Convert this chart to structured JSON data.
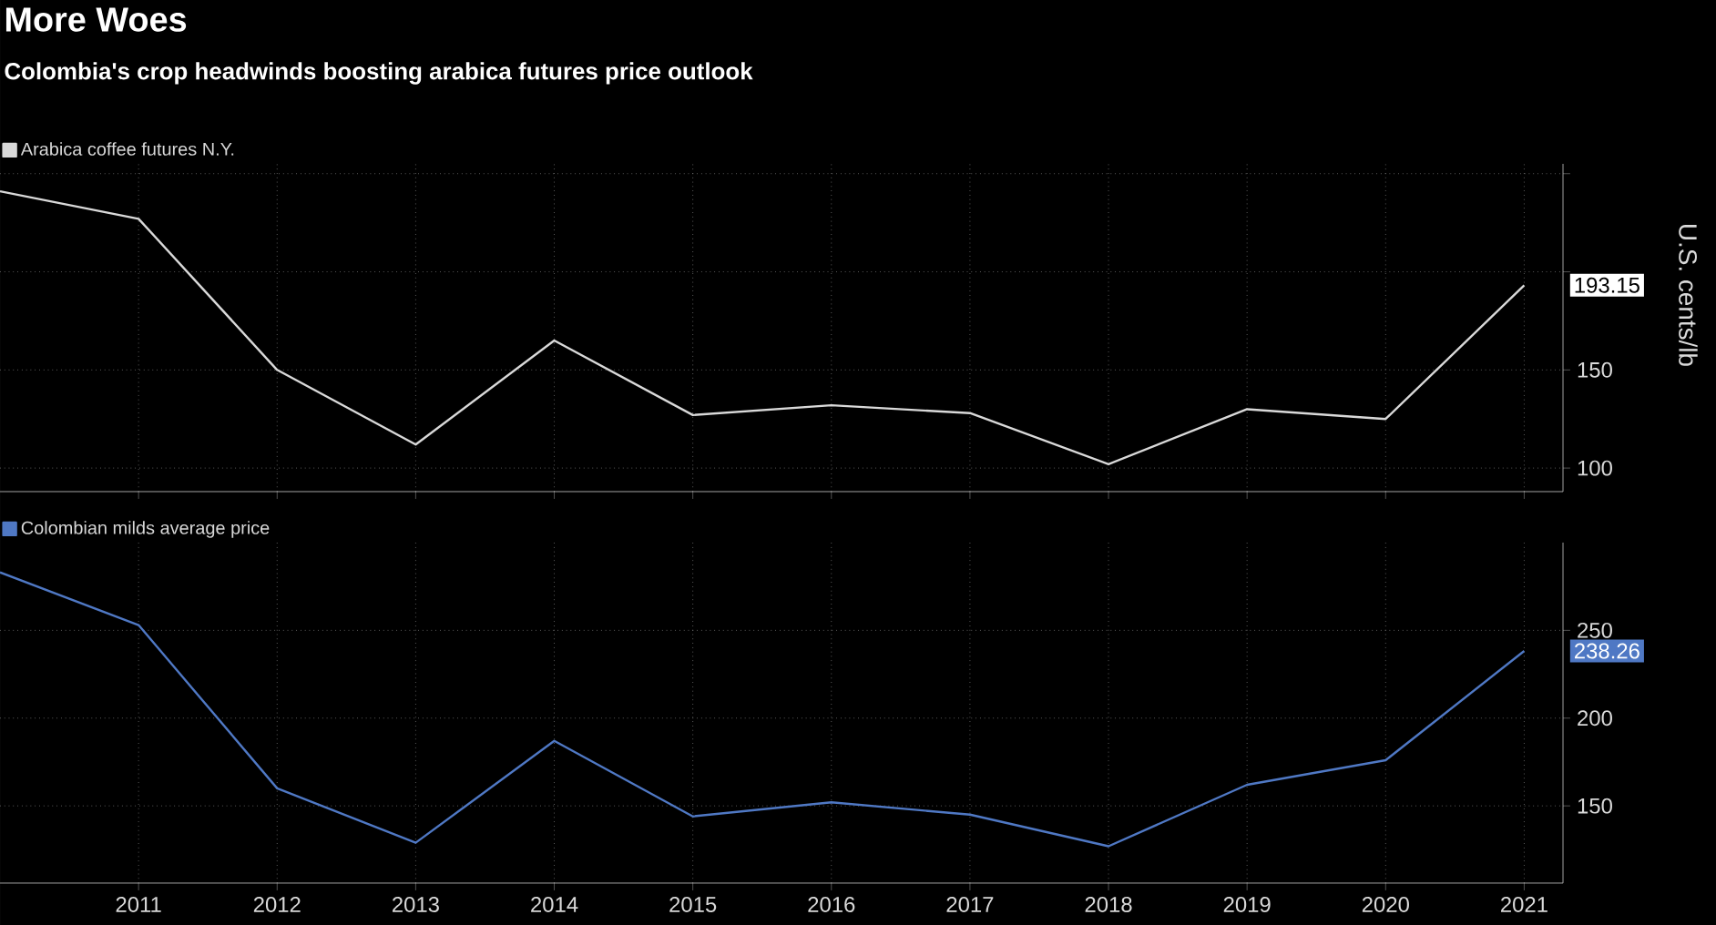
{
  "chart_data": [
    {
      "type": "line",
      "title": "More Woes",
      "subtitle": "Colombia's crop headwinds boosting arabica futures price outlook",
      "ylabel": "U.S. cents/lb",
      "x": [
        2010,
        2011,
        2012,
        2013,
        2014,
        2015,
        2016,
        2017,
        2018,
        2019,
        2020,
        2021
      ],
      "series": [
        {
          "name": "Arabica coffee futures N.Y.",
          "color": "#d9d9d9",
          "values": [
            241,
            227,
            150,
            112,
            165,
            127,
            132,
            128,
            102,
            130,
            125,
            193.15
          ]
        }
      ],
      "xlim": [
        2010,
        2021.28
      ],
      "xticks": [
        2011,
        2012,
        2013,
        2014,
        2015,
        2016,
        2017,
        2018,
        2019,
        2020,
        2021
      ],
      "ylim": [
        88,
        255
      ],
      "yticks": [
        100,
        150,
        {
          "value": 200,
          "label": null
        },
        {
          "value": 250,
          "label": null
        }
      ],
      "annotations": [
        {
          "text": "193.15",
          "x": 2021,
          "y": 193.15
        }
      ],
      "tick_labels": "y",
      "grid": true,
      "legend": "top left",
      "marker": "none",
      "line_style": "solid"
    },
    {
      "type": "line",
      "x": [
        2010,
        2011,
        2012,
        2013,
        2014,
        2015,
        2016,
        2017,
        2018,
        2019,
        2020,
        2021
      ],
      "series": [
        {
          "name": "Colombian milds average price",
          "color": "#4f78c4",
          "values": [
            283,
            253,
            160,
            129,
            187,
            144,
            152,
            145,
            127,
            162,
            176,
            238.26
          ]
        }
      ],
      "xlim": [
        2010,
        2021.28
      ],
      "xticks": [
        2011,
        2012,
        2013,
        2014,
        2015,
        2016,
        2017,
        2018,
        2019,
        2020,
        2021
      ],
      "ylim": [
        106,
        300
      ],
      "yticks": [
        150,
        200,
        250
      ],
      "annotations": [
        {
          "text": "238.26",
          "x": 2021,
          "y": 238.26
        }
      ],
      "grid": true,
      "legend": "top left",
      "marker": "none",
      "line_style": "solid"
    }
  ]
}
